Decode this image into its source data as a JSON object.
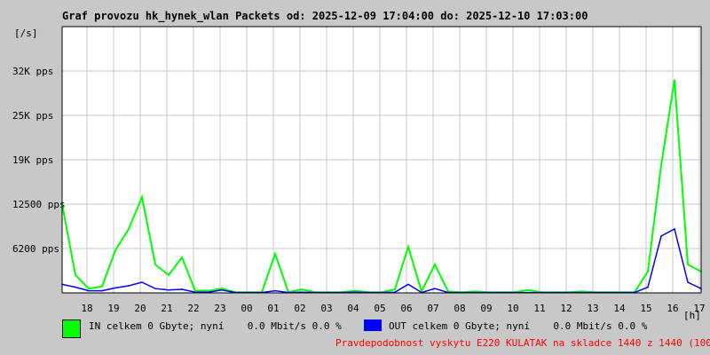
{
  "title": "Graf provozu hk_hynek_wlan Packets od: 2025-12-09 17:04:00 do: 2025-12-10 17:03:00",
  "colors": {
    "in": "#00ff00",
    "out": "#0000ff",
    "grid": "#c8c8c8",
    "footer": "#ff0000"
  },
  "legend": {
    "in": "IN celkem 0 Gbyte; nyní    0.0 Mbit/s 0.0 %",
    "out": "OUT celkem 0 Gbyte; nyní    0.0 Mbit/s 0.0 %"
  },
  "footer": "Pravdepodobnost vyskytu E220 KULATAK na skladce 1440 z 1440 (100.0 %)",
  "chart_data": {
    "type": "line",
    "ylabel": "[/s]",
    "xlabel": "[h]",
    "ylim": [
      0,
      37500
    ],
    "yticks": [
      {
        "value": 6200,
        "label": "6200 pps"
      },
      {
        "value": 12500,
        "label": "12500 pps"
      },
      {
        "value": 19000,
        "label": "19K pps"
      },
      {
        "value": 25000,
        "label": "25K pps"
      },
      {
        "value": 32000,
        "label": "32K pps"
      }
    ],
    "xticks": [
      "18",
      "19",
      "20",
      "21",
      "22",
      "23",
      "00",
      "01",
      "02",
      "03",
      "04",
      "05",
      "06",
      "07",
      "08",
      "09",
      "10",
      "11",
      "12",
      "13",
      "14",
      "15",
      "16",
      "17"
    ],
    "grid": true,
    "x": [
      "17:04",
      "17:34",
      "18:04",
      "18:34",
      "19:04",
      "19:34",
      "20:04",
      "20:34",
      "21:04",
      "21:34",
      "22:04",
      "22:34",
      "23:04",
      "23:34",
      "00:04",
      "00:34",
      "01:04",
      "01:34",
      "02:04",
      "02:34",
      "03:04",
      "03:34",
      "04:04",
      "04:34",
      "05:04",
      "05:34",
      "06:04",
      "06:34",
      "07:04",
      "07:34",
      "08:04",
      "08:34",
      "09:04",
      "09:34",
      "10:04",
      "10:34",
      "11:04",
      "11:34",
      "12:04",
      "12:34",
      "13:04",
      "13:34",
      "14:04",
      "14:34",
      "15:04",
      "15:34",
      "16:04",
      "16:34",
      "17:04"
    ],
    "series": [
      {
        "name": "IN",
        "values": [
          12500,
          2500,
          600,
          900,
          6000,
          9000,
          13500,
          4000,
          2500,
          5000,
          300,
          300,
          600,
          100,
          100,
          100,
          5500,
          100,
          500,
          100,
          100,
          100,
          300,
          100,
          100,
          500,
          6500,
          200,
          4000,
          200,
          100,
          200,
          100,
          100,
          100,
          400,
          100,
          100,
          100,
          200,
          100,
          100,
          100,
          100,
          3000,
          18000,
          30000,
          4000,
          3000
        ]
      },
      {
        "name": "OUT",
        "values": [
          1200,
          800,
          300,
          300,
          700,
          1000,
          1500,
          600,
          400,
          500,
          100,
          100,
          400,
          50,
          50,
          50,
          300,
          50,
          100,
          50,
          50,
          50,
          100,
          50,
          50,
          100,
          1200,
          50,
          600,
          50,
          50,
          50,
          50,
          50,
          50,
          50,
          50,
          50,
          50,
          50,
          50,
          50,
          50,
          50,
          800,
          8000,
          9000,
          1500,
          600
        ]
      }
    ]
  }
}
